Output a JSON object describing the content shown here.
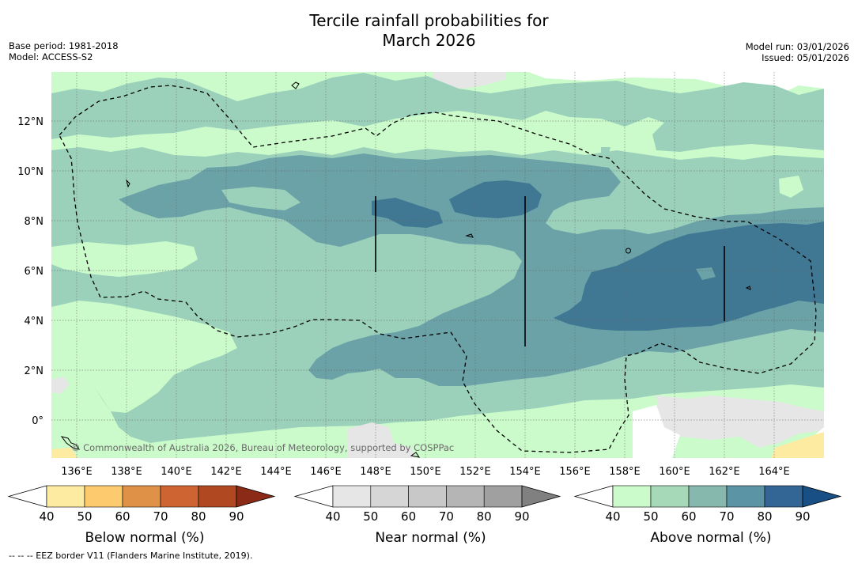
{
  "title": {
    "line1": "Tercile rainfall probabilities for",
    "line2": "March 2026"
  },
  "meta_left": {
    "base_period": "Base period: 1981-2018",
    "model": "Model: ACCESS-S2"
  },
  "meta_right": {
    "model_run": "Model run: 03/01/2026",
    "issued": "Issued: 05/01/2026"
  },
  "map": {
    "lon_range": [
      135.0,
      166.0
    ],
    "lat_range": [
      -1.5,
      14.0
    ],
    "lon_ticks": [
      "136°E",
      "138°E",
      "140°E",
      "142°E",
      "144°E",
      "146°E",
      "148°E",
      "150°E",
      "152°E",
      "154°E",
      "156°E",
      "158°E",
      "160°E",
      "162°E",
      "164°E"
    ],
    "lat_ticks": [
      "12°N",
      "10°N",
      "8°N",
      "6°N",
      "4°N",
      "2°N",
      "0°"
    ],
    "copyright": "© Commonwealth of Australia 2026, Bureau of Meteorology, supported by COSPPac",
    "eez_note": "--  --  -- EEZ border V11 (Flanders Marine Institute, 2019)."
  },
  "colorbars": [
    {
      "name": "below",
      "title": "Below normal (%)",
      "ticks": [
        "40",
        "50",
        "60",
        "70",
        "80",
        "90"
      ],
      "colors": [
        "#ffffff",
        "#feeba2",
        "#fdcb6e",
        "#e09148",
        "#cd6431",
        "#b04822",
        "#8b2b17"
      ]
    },
    {
      "name": "near",
      "title": "Near normal (%)",
      "ticks": [
        "40",
        "50",
        "60",
        "70",
        "80",
        "90"
      ],
      "colors": [
        "#ffffff",
        "#e6e6e6",
        "#d6d6d6",
        "#c8c8c8",
        "#b5b5b5",
        "#a0a0a0",
        "#808080"
      ]
    },
    {
      "name": "above",
      "title": "Above normal (%)",
      "ticks": [
        "40",
        "50",
        "60",
        "70",
        "80",
        "90"
      ],
      "colors": [
        "#ffffff",
        "#cbfbca",
        "#a6d9b8",
        "#87b8ad",
        "#5b95a5",
        "#336595",
        "#184f85"
      ]
    }
  ],
  "colors": {
    "above_1": "#cbfbca",
    "above_2": "#9bd1bb",
    "above_3": "#6aa2a7",
    "above_4": "#407893",
    "near_1": "#e6e6e6",
    "below_1": "#feeba2"
  }
}
